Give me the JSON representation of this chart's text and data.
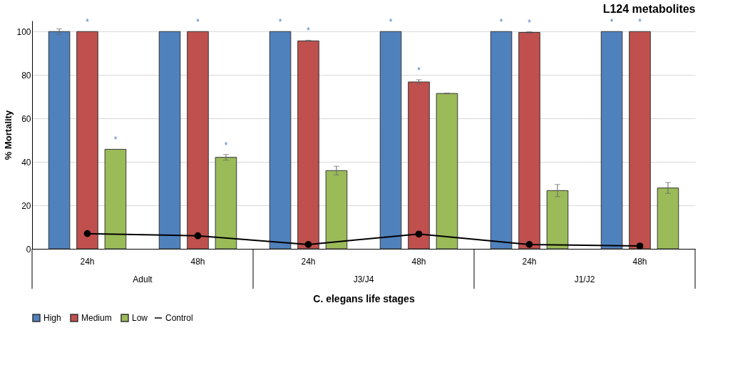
{
  "chart_data": {
    "type": "bar",
    "title": "L124 metabolites",
    "xlabel": "C. elegans life stages",
    "ylabel": "% Mortality",
    "categories": [
      "24h",
      "48h",
      "24h",
      "48h",
      "24h",
      "48h"
    ],
    "annotations": [
      "Adult",
      "J3/J4",
      "J1/J2"
    ],
    "series": [
      {
        "name": "High",
        "color": "#4f81bd",
        "values": [
          100,
          100,
          100,
          100,
          100,
          100
        ],
        "errors": [
          1.3,
          null,
          null,
          null,
          null,
          null
        ],
        "value_labels": [
          null,
          null,
          "*",
          "*",
          "*",
          "*"
        ]
      },
      {
        "name": "Medium",
        "color": "#c0504d",
        "values": [
          100,
          100,
          95.7,
          76.8,
          99.6,
          100
        ],
        "errors": [
          null,
          null,
          0.3,
          1,
          0.3,
          null
        ],
        "value_labels": [
          "*",
          "*",
          "*",
          "*",
          "*",
          "*"
        ]
      },
      {
        "name": "Low",
        "color": "#9bbb59",
        "values": [
          45.8,
          42.1,
          36,
          71.5,
          26.8,
          28
        ],
        "errors": [
          null,
          1.3,
          2,
          0.2,
          2.8,
          2.5
        ],
        "value_labels": [
          "*",
          "*",
          null,
          null,
          null,
          null
        ]
      },
      {
        "name": "Control",
        "color": "#000000",
        "type": "line",
        "marker": "circle",
        "values": [
          7,
          6,
          2,
          6.8,
          2,
          1.3
        ]
      }
    ],
    "ylim": [
      0,
      105
    ],
    "yticks": [
      0,
      20,
      40,
      60,
      80,
      100
    ],
    "grid": "y",
    "legend": "bottom"
  }
}
